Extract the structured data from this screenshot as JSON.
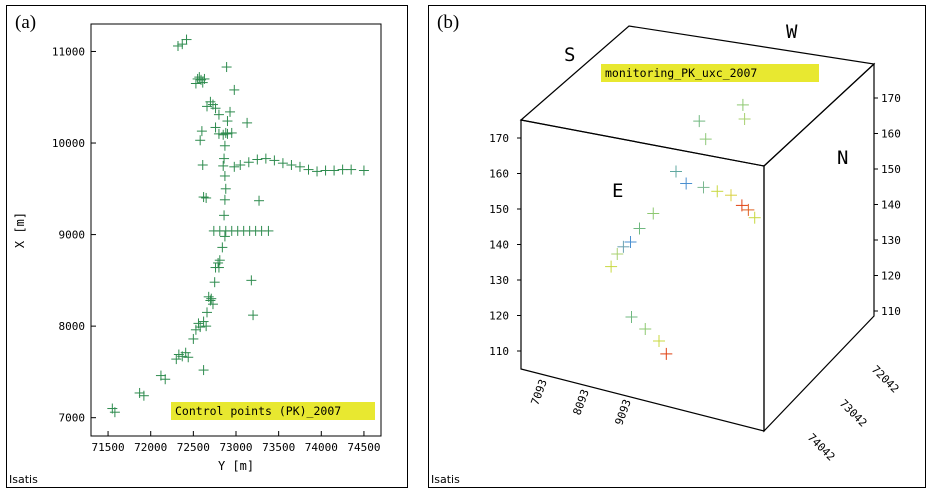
{
  "panels": {
    "a": {
      "tag": "(a)",
      "footer": "Isatis"
    },
    "b": {
      "tag": "(b)",
      "footer": "Isatis"
    }
  },
  "colors": {
    "marker_green": "#2e8b4e",
    "legend_bg": "#e8e830",
    "hot": "#e04010",
    "blue": "#4a8fd0",
    "yellow": "#c8d840"
  },
  "chart_data": [
    {
      "type": "scatter",
      "title": "",
      "legend": "Control points (PK)_2007",
      "legend_position": "bottom-right",
      "xlabel": "Y [m]",
      "ylabel": "X [m]",
      "xlim": [
        71300,
        74700
      ],
      "ylim": [
        6800,
        11300
      ],
      "xticks": [
        71500,
        72000,
        72500,
        73000,
        73500,
        74000,
        74500
      ],
      "yticks": [
        7000,
        8000,
        9000,
        10000,
        11000
      ],
      "series": [
        {
          "marker": "+",
          "points": [
            [
              71550,
              7100
            ],
            [
              71580,
              7060
            ],
            [
              71870,
              7270
            ],
            [
              71920,
              7240
            ],
            [
              72120,
              7460
            ],
            [
              72170,
              7420
            ],
            [
              72300,
              7640
            ],
            [
              72330,
              7690
            ],
            [
              72370,
              7670
            ],
            [
              72410,
              7710
            ],
            [
              72440,
              7660
            ],
            [
              72500,
              7860
            ],
            [
              72530,
              7960
            ],
            [
              72560,
              8030
            ],
            [
              72580,
              7990
            ],
            [
              72620,
              8050
            ],
            [
              72650,
              8000
            ],
            [
              72620,
              7520
            ],
            [
              72660,
              8150
            ],
            [
              72700,
              8280
            ],
            [
              72730,
              8240
            ],
            [
              72680,
              8320
            ],
            [
              72710,
              8300
            ],
            [
              72750,
              8480
            ],
            [
              72760,
              8640
            ],
            [
              72790,
              8690
            ],
            [
              72800,
              8640
            ],
            [
              72810,
              8720
            ],
            [
              72840,
              8860
            ],
            [
              72870,
              8980
            ],
            [
              72880,
              9040
            ],
            [
              72950,
              9040
            ],
            [
              73020,
              9040
            ],
            [
              73090,
              9040
            ],
            [
              73160,
              9040
            ],
            [
              73230,
              9040
            ],
            [
              73300,
              9040
            ],
            [
              73380,
              9040
            ],
            [
              72810,
              9040
            ],
            [
              72740,
              9040
            ],
            [
              72860,
              9210
            ],
            [
              72870,
              9380
            ],
            [
              72880,
              9500
            ],
            [
              72870,
              9640
            ],
            [
              72850,
              9750
            ],
            [
              72860,
              9830
            ],
            [
              72870,
              9970
            ],
            [
              72880,
              10110
            ],
            [
              72900,
              10240
            ],
            [
              72930,
              10340
            ],
            [
              72980,
              9740
            ],
            [
              73050,
              9760
            ],
            [
              73150,
              9790
            ],
            [
              73250,
              9820
            ],
            [
              73350,
              9830
            ],
            [
              73450,
              9810
            ],
            [
              73550,
              9780
            ],
            [
              73650,
              9760
            ],
            [
              73750,
              9740
            ],
            [
              73850,
              9710
            ],
            [
              73950,
              9690
            ],
            [
              74050,
              9700
            ],
            [
              74150,
              9700
            ],
            [
              74250,
              9710
            ],
            [
              74350,
              9710
            ],
            [
              74500,
              9700
            ],
            [
              72610,
              9760
            ],
            [
              72620,
              9410
            ],
            [
              72650,
              9400
            ],
            [
              72580,
              10030
            ],
            [
              72600,
              10130
            ],
            [
              72660,
              10400
            ],
            [
              72700,
              10450
            ],
            [
              72730,
              10420
            ],
            [
              72760,
              10380
            ],
            [
              72800,
              10310
            ],
            [
              72760,
              10170
            ],
            [
              72800,
              10100
            ],
            [
              72850,
              10090
            ],
            [
              72900,
              10100
            ],
            [
              72950,
              10110
            ],
            [
              72530,
              10650
            ],
            [
              72550,
              10700
            ],
            [
              72570,
              10720
            ],
            [
              72590,
              10690
            ],
            [
              72610,
              10660
            ],
            [
              72630,
              10700
            ],
            [
              72370,
              11080
            ],
            [
              72420,
              11130
            ],
            [
              72320,
              11060
            ],
            [
              72890,
              10830
            ],
            [
              72980,
              10580
            ],
            [
              73130,
              10220
            ],
            [
              73270,
              9370
            ],
            [
              73180,
              8500
            ],
            [
              73200,
              8120
            ]
          ]
        }
      ]
    },
    {
      "type": "scatter",
      "title": "",
      "legend": "monitoring_PK_uxc_2007",
      "face_labels": {
        "top_left": "S",
        "top_right": "W",
        "right": "N",
        "left": "E"
      },
      "vertical_ticks_left": [
        110,
        120,
        130,
        140,
        150,
        160,
        170
      ],
      "vertical_ticks_right": [
        110,
        120,
        130,
        140,
        150,
        160,
        170
      ],
      "depth_ticks": [
        "7093",
        "8093",
        "9093"
      ],
      "width_ticks": [
        "74042",
        "73042",
        "72042"
      ],
      "series": [
        {
          "marker": "+",
          "points": [
            {
              "x": 0.7,
              "y": 0.82,
              "z": 0.95,
              "c": "#8dc870"
            },
            {
              "x": 0.72,
              "y": 0.8,
              "z": 0.9,
              "c": "#a8d070"
            },
            {
              "x": 0.6,
              "y": 0.55,
              "z": 0.92,
              "c": "#70b880"
            },
            {
              "x": 0.62,
              "y": 0.58,
              "z": 0.85,
              "c": "#8ec878"
            },
            {
              "x": 0.55,
              "y": 0.4,
              "z": 0.75,
              "c": "#60a8a0"
            },
            {
              "x": 0.58,
              "y": 0.45,
              "z": 0.7,
              "c": "#4a8fd0"
            },
            {
              "x": 0.65,
              "y": 0.5,
              "z": 0.68,
              "c": "#7ab890"
            },
            {
              "x": 0.7,
              "y": 0.55,
              "z": 0.66,
              "c": "#c8d840"
            },
            {
              "x": 0.75,
              "y": 0.6,
              "z": 0.64,
              "c": "#d8d040"
            },
            {
              "x": 0.8,
              "y": 0.62,
              "z": 0.6,
              "c": "#e04010"
            },
            {
              "x": 0.82,
              "y": 0.65,
              "z": 0.58,
              "c": "#e06020"
            },
            {
              "x": 0.85,
              "y": 0.66,
              "z": 0.55,
              "c": "#c8d840"
            },
            {
              "x": 0.45,
              "y": 0.35,
              "z": 0.6,
              "c": "#8dc870"
            },
            {
              "x": 0.4,
              "y": 0.3,
              "z": 0.55,
              "c": "#70b880"
            },
            {
              "x": 0.35,
              "y": 0.3,
              "z": 0.5,
              "c": "#4a8fd0"
            },
            {
              "x": 0.3,
              "y": 0.32,
              "z": 0.48,
              "c": "#6aa0b0"
            },
            {
              "x": 0.25,
              "y": 0.35,
              "z": 0.45,
              "c": "#a8d070"
            },
            {
              "x": 0.2,
              "y": 0.38,
              "z": 0.4,
              "c": "#c8d840"
            },
            {
              "x": 0.25,
              "y": 0.5,
              "z": 0.2,
              "c": "#70b880"
            },
            {
              "x": 0.3,
              "y": 0.55,
              "z": 0.15,
              "c": "#8dc870"
            },
            {
              "x": 0.35,
              "y": 0.6,
              "z": 0.1,
              "c": "#c8d840"
            },
            {
              "x": 0.38,
              "y": 0.62,
              "z": 0.05,
              "c": "#e04010"
            }
          ]
        }
      ]
    }
  ]
}
